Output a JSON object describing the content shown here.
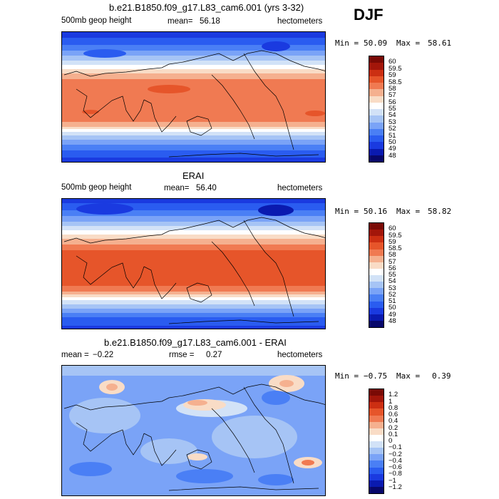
{
  "season": "DJF",
  "panels": [
    {
      "title": "b.e21.B1850.f09_g17.L83_cam6.001 (yrs 3-32)",
      "left_label": "500mb geop height",
      "mean_label": "mean=",
      "mean_value": "56.18",
      "units": "hectometers",
      "min_label": "Min =",
      "min_value": "50.09",
      "max_label": "Max =",
      "max_value": "58.61",
      "colorbar_levels": [
        "48",
        "49",
        "50",
        "51",
        "52",
        "53",
        "54",
        "55",
        "56",
        "57",
        "58",
        "58.5",
        "59",
        "59.5",
        "60"
      ],
      "colorbar_colors": [
        "#08086b",
        "#0a1ab0",
        "#1a3ae0",
        "#2a5cf0",
        "#4a7ff5",
        "#7aa3f7",
        "#a6c4f5",
        "#d2e2f7",
        "#ffffff",
        "#f9dcc6",
        "#f5b08f",
        "#f07a52",
        "#e6552a",
        "#cc2f12",
        "#a3160a",
        "#7a0a05"
      ]
    },
    {
      "title": "ERAI",
      "left_label": "500mb geop height",
      "mean_label": "mean=",
      "mean_value": "56.40",
      "units": "hectometers",
      "min_label": "Min =",
      "min_value": "50.16",
      "max_label": "Max =",
      "max_value": "58.82",
      "colorbar_levels": [
        "48",
        "49",
        "50",
        "51",
        "52",
        "53",
        "54",
        "55",
        "56",
        "57",
        "58",
        "58.5",
        "59",
        "59.5",
        "60"
      ],
      "colorbar_colors": [
        "#08086b",
        "#0a1ab0",
        "#1a3ae0",
        "#2a5cf0",
        "#4a7ff5",
        "#7aa3f7",
        "#a6c4f5",
        "#d2e2f7",
        "#ffffff",
        "#f9dcc6",
        "#f5b08f",
        "#f07a52",
        "#e6552a",
        "#cc2f12",
        "#a3160a",
        "#7a0a05"
      ]
    },
    {
      "title": "b.e21.B1850.f09_g17.L83_cam6.001 - ERAI",
      "mean_label": "mean =",
      "mean_value": "−0.22",
      "rmse_label": "rmse =",
      "rmse_value": "0.27",
      "units": "hectometers",
      "min_label": "Min =",
      "min_value": "−0.75",
      "max_label": "Max =",
      "max_value": "0.39",
      "colorbar_levels": [
        "−1.2",
        "−1",
        "−0.8",
        "−0.6",
        "−0.4",
        "−0.2",
        "−0.1",
        "0",
        "0.1",
        "0.2",
        "0.4",
        "0.6",
        "0.8",
        "1",
        "1.2"
      ],
      "colorbar_colors": [
        "#08086b",
        "#0a1ab0",
        "#1a3ae0",
        "#2a5cf0",
        "#4a7ff5",
        "#7aa3f7",
        "#a6c4f5",
        "#d2e2f7",
        "#ffffff",
        "#f9dcc6",
        "#f5b08f",
        "#f07a52",
        "#e6552a",
        "#cc2f12",
        "#a3160a",
        "#7a0a05"
      ]
    }
  ]
}
